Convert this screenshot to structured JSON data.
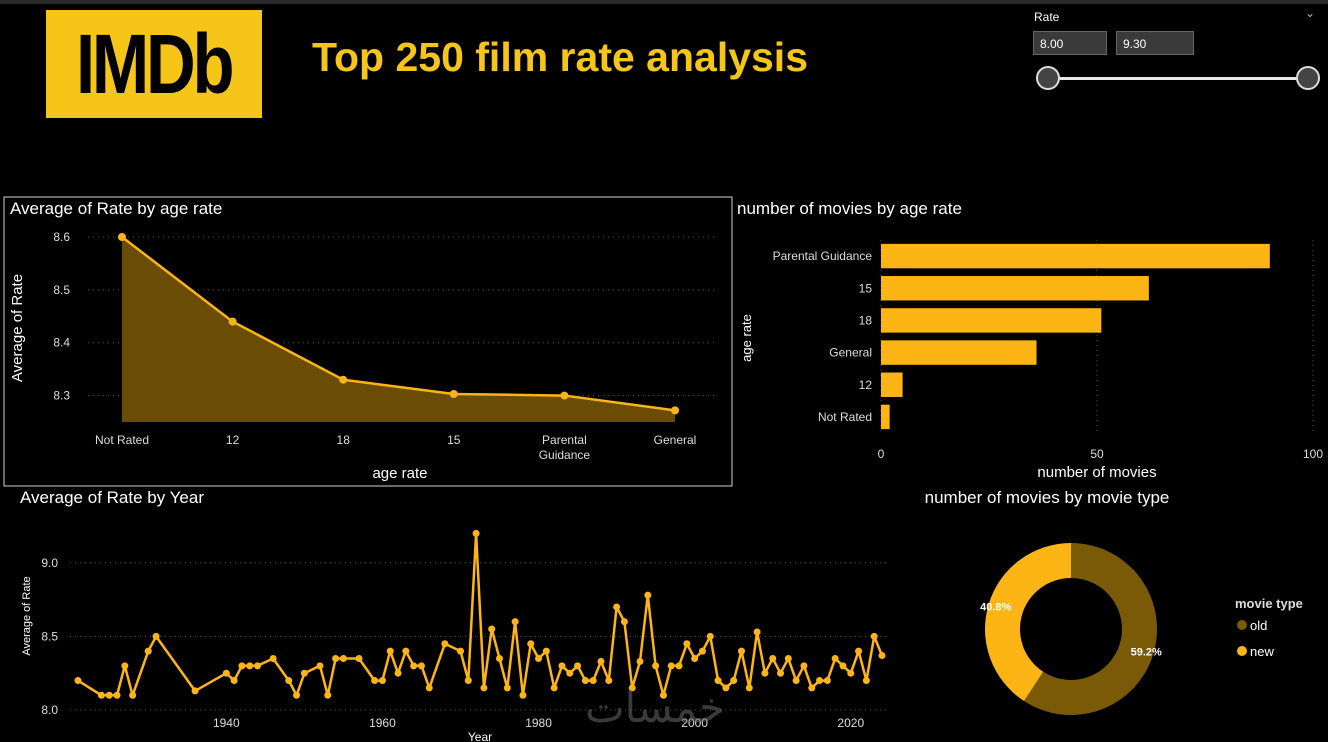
{
  "header": {
    "logo_text": "IMDb",
    "title": "Top 250 film rate analysis"
  },
  "slicer": {
    "title": "Rate",
    "min_value": "8.00",
    "max_value": "9.30",
    "chevron": "⌄"
  },
  "watermark": "خمسات",
  "colors": {
    "accent": "#f5c518",
    "bar": "#fdb515",
    "area_fill": "#6b4c04",
    "donut_old": "#7a5a06",
    "donut_new": "#fdb515"
  },
  "chart_data": [
    {
      "id": "avg_rate_by_age",
      "type": "area",
      "title": "Average of Rate by age rate",
      "xlabel": "age rate",
      "ylabel": "Average of Rate",
      "categories": [
        "Not Rated",
        "12",
        "18",
        "15",
        "Parental Guidance",
        "General"
      ],
      "category_lines": [
        [
          "Not Rated"
        ],
        [
          "12"
        ],
        [
          "18"
        ],
        [
          "15"
        ],
        [
          "Parental",
          "Guidance"
        ],
        [
          "General"
        ]
      ],
      "values": [
        8.6,
        8.44,
        8.33,
        8.303,
        8.3,
        8.272
      ],
      "ylim": [
        8.25,
        8.6
      ],
      "yticks": [
        8.3,
        8.4,
        8.5,
        8.6
      ],
      "ytick_labels": [
        "8.3",
        "8.4",
        "8.5",
        "8.6"
      ],
      "grid": true
    },
    {
      "id": "movies_by_age",
      "type": "bar",
      "orientation": "horizontal",
      "title": "number of movies by age rate",
      "xlabel": "number of movies",
      "ylabel": "age rate",
      "categories": [
        "Parental Guidance",
        "15",
        "18",
        "General",
        "12",
        "Not Rated"
      ],
      "values": [
        90,
        62,
        51,
        36,
        5,
        2
      ],
      "xlim": [
        0,
        100
      ],
      "xticks": [
        0,
        50,
        100
      ],
      "xtick_labels": [
        "0",
        "50",
        "100"
      ],
      "grid": true
    },
    {
      "id": "avg_rate_by_year",
      "type": "line",
      "title": "Average of Rate by Year",
      "xlabel": "Year",
      "ylabel": "Average of Rate",
      "x": [
        1921,
        1924,
        1925,
        1926,
        1927,
        1928,
        1930,
        1931,
        1936,
        1940,
        1941,
        1942,
        1943,
        1944,
        1946,
        1948,
        1949,
        1950,
        1952,
        1953,
        1954,
        1955,
        1957,
        1959,
        1960,
        1961,
        1962,
        1963,
        1964,
        1965,
        1966,
        1968,
        1970,
        1971,
        1972,
        1973,
        1974,
        1975,
        1976,
        1977,
        1978,
        1979,
        1980,
        1981,
        1982,
        1983,
        1984,
        1985,
        1986,
        1987,
        1988,
        1989,
        1990,
        1991,
        1992,
        1993,
        1994,
        1995,
        1996,
        1997,
        1998,
        1999,
        2000,
        2001,
        2002,
        2003,
        2004,
        2005,
        2006,
        2007,
        2008,
        2009,
        2010,
        2011,
        2012,
        2013,
        2014,
        2015,
        2016,
        2017,
        2018,
        2019,
        2020,
        2021,
        2022,
        2023,
        2024
      ],
      "values": [
        8.2,
        8.1,
        8.1,
        8.1,
        8.3,
        8.1,
        8.4,
        8.5,
        8.13,
        8.25,
        8.2,
        8.3,
        8.3,
        8.3,
        8.35,
        8.2,
        8.1,
        8.25,
        8.3,
        8.1,
        8.35,
        8.35,
        8.35,
        8.2,
        8.2,
        8.4,
        8.25,
        8.4,
        8.3,
        8.3,
        8.15,
        8.45,
        8.4,
        8.2,
        9.2,
        8.15,
        8.55,
        8.35,
        8.15,
        8.6,
        8.1,
        8.45,
        8.35,
        8.4,
        8.15,
        8.3,
        8.25,
        8.3,
        8.2,
        8.2,
        8.33,
        8.2,
        8.7,
        8.6,
        8.15,
        8.33,
        8.78,
        8.3,
        8.1,
        8.3,
        8.3,
        8.45,
        8.35,
        8.4,
        8.5,
        8.2,
        8.15,
        8.2,
        8.4,
        8.15,
        8.53,
        8.25,
        8.35,
        8.25,
        8.35,
        8.2,
        8.3,
        8.15,
        8.2,
        8.2,
        8.35,
        8.3,
        8.25,
        8.4,
        8.2,
        8.5,
        8.37
      ],
      "xlim": [
        1919,
        2026
      ],
      "ylim": [
        8.0,
        9.25
      ],
      "xticks": [
        1940,
        1960,
        1980,
        2000,
        2020
      ],
      "xtick_labels": [
        "1940",
        "1960",
        "1980",
        "2000",
        "2020"
      ],
      "yticks": [
        8.0,
        8.5,
        9.0
      ],
      "ytick_labels": [
        "8.0",
        "8.5",
        "9.0"
      ],
      "grid": true
    },
    {
      "id": "movies_by_type",
      "type": "pie",
      "title": "number of movies by movie type",
      "legend_title": "movie type",
      "labels": [
        "old",
        "new"
      ],
      "values": [
        59.2,
        40.8
      ],
      "value_labels": [
        "59.2%",
        "40.8%"
      ],
      "legend": "right"
    }
  ]
}
